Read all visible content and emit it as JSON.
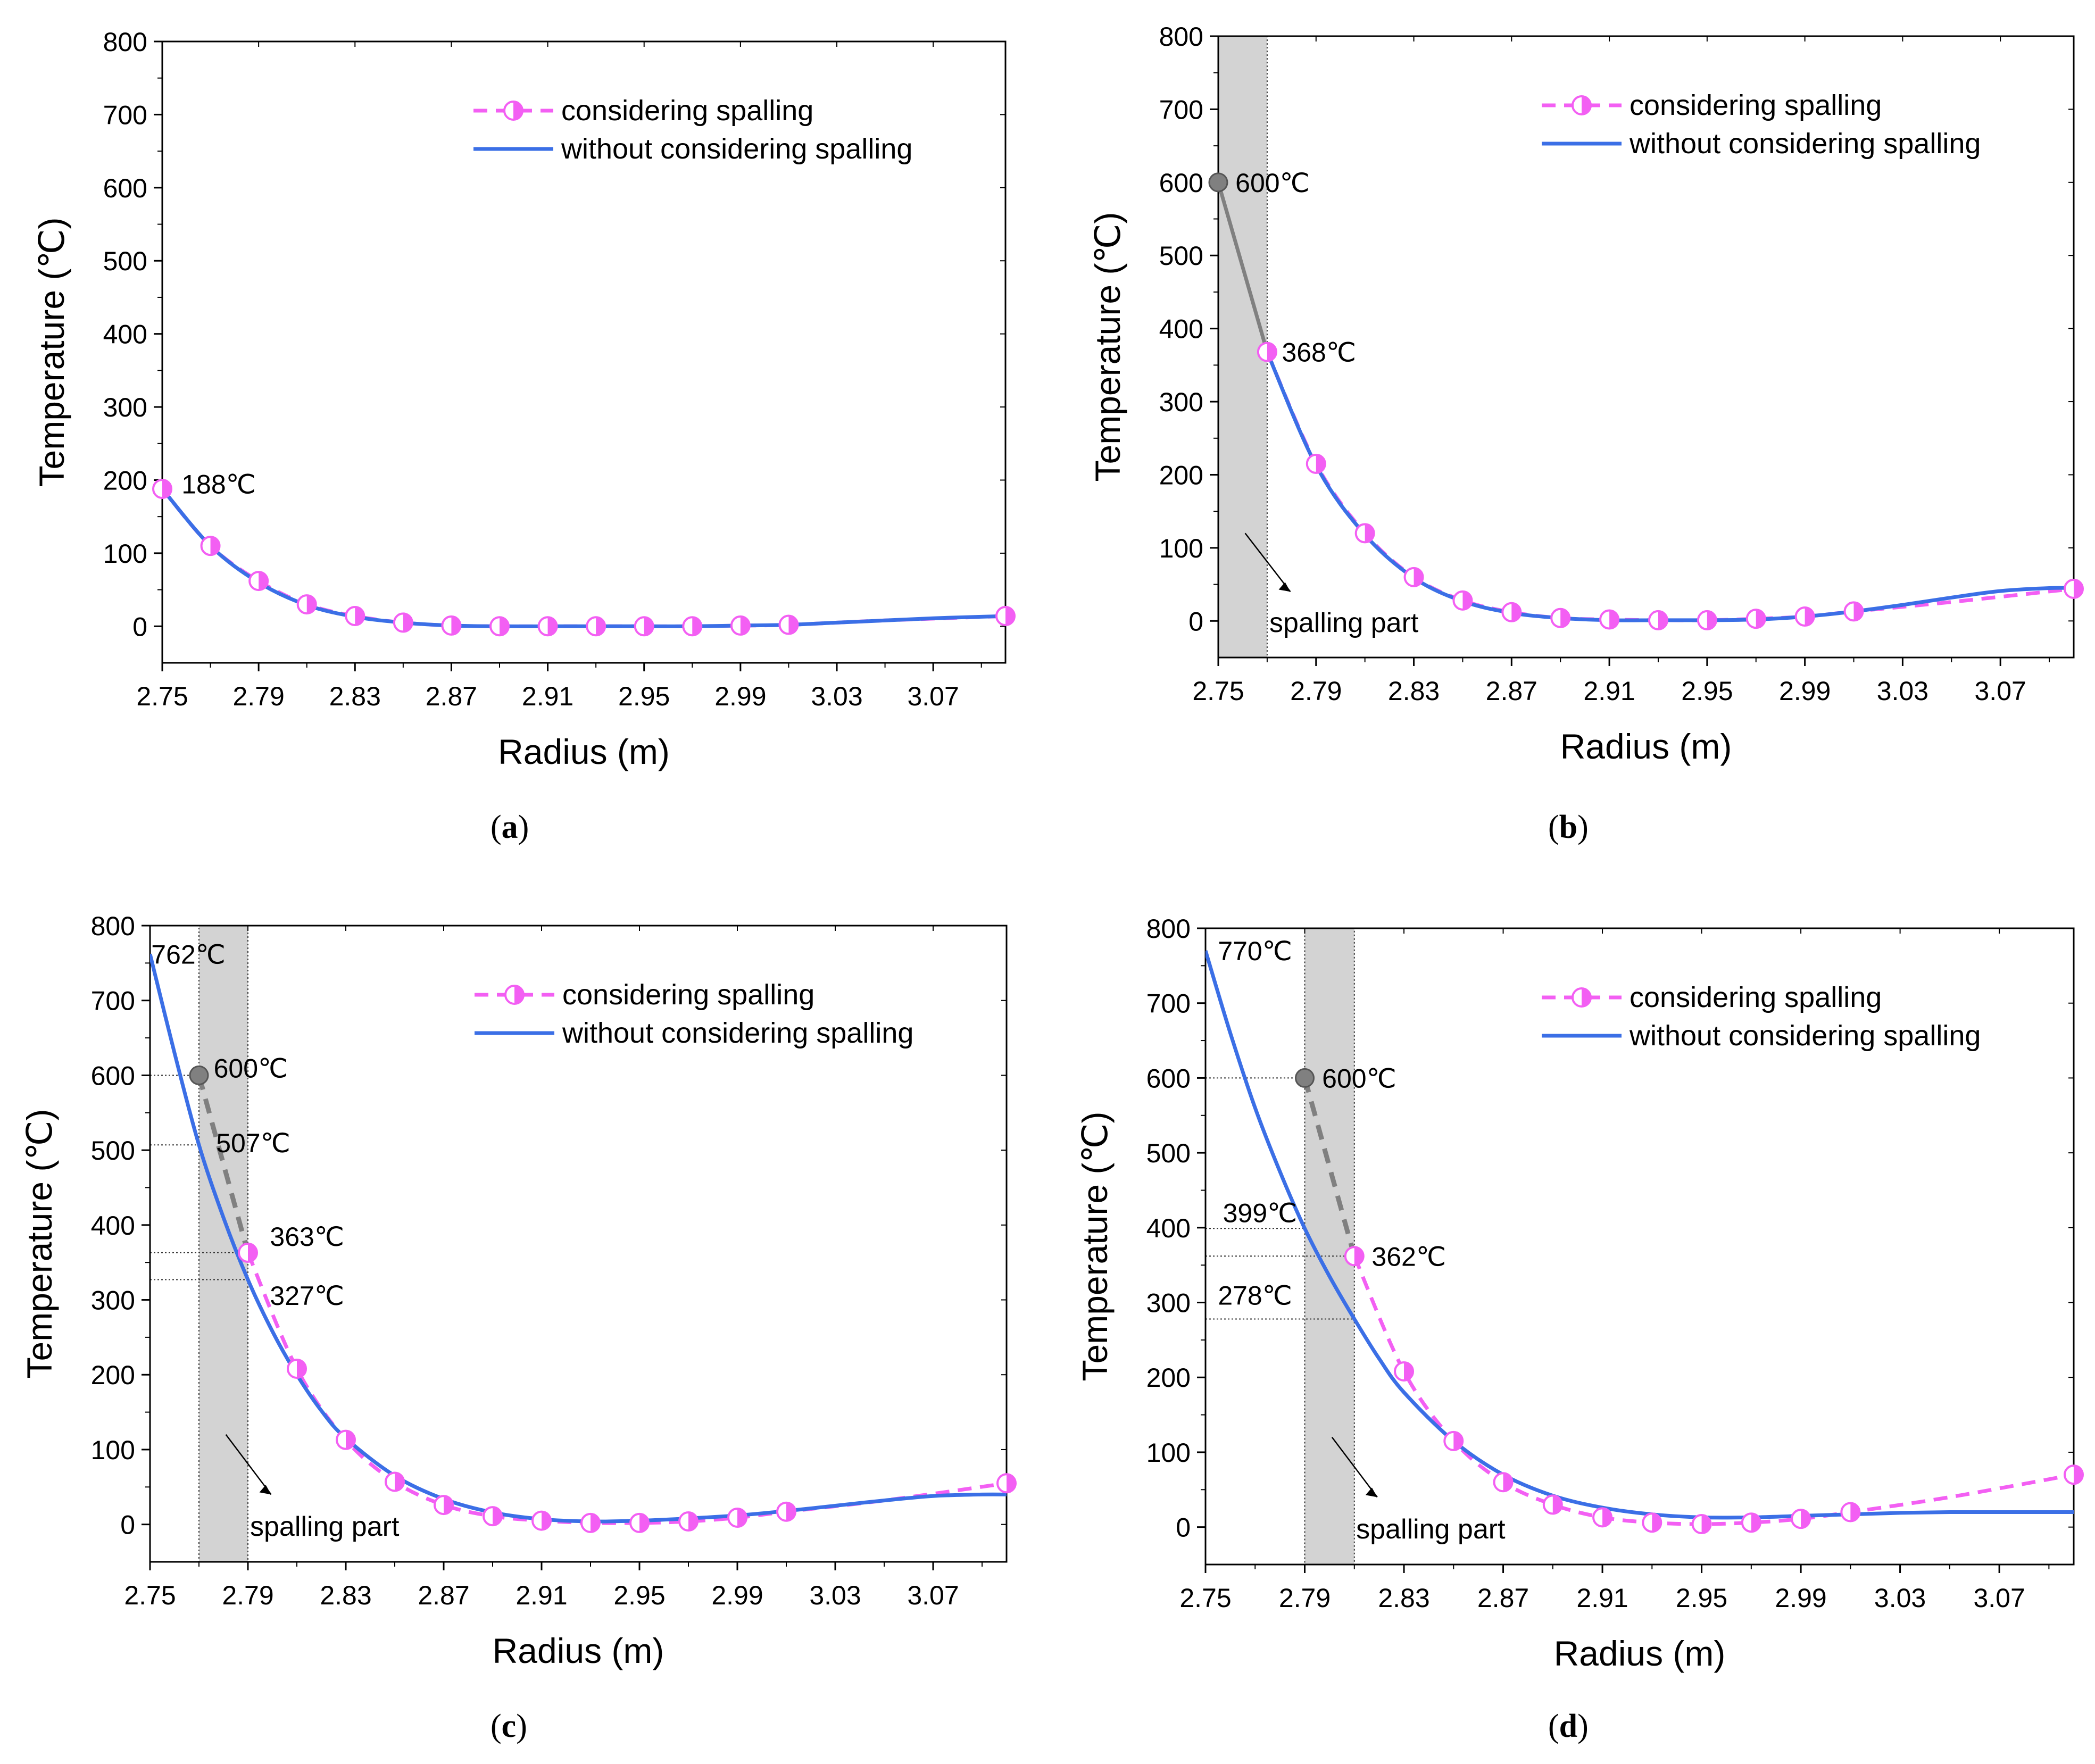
{
  "figure": {
    "captions": [
      "a",
      "b",
      "c",
      "d"
    ]
  },
  "colors": {
    "considering": "#f35ff3",
    "without": "#3b6fe6",
    "spall_region": "#d3d3d3",
    "gray_point": "#808080"
  },
  "chart_data": [
    {
      "panel": "a",
      "type": "line",
      "xlabel": "Radius (m)",
      "ylabel": "Temperature (℃)",
      "xlim": [
        2.75,
        3.1
      ],
      "ylim": [
        -50,
        800
      ],
      "xticks": [
        2.75,
        2.79,
        2.83,
        2.87,
        2.91,
        2.95,
        2.99,
        3.03,
        3.07
      ],
      "xtick_labels": [
        "2.75",
        "2.79",
        "2.83",
        "2.87",
        "2.91",
        "2.95",
        "2.99",
        "3.03",
        "3.07"
      ],
      "yticks": [
        0,
        100,
        200,
        300,
        400,
        500,
        600,
        700,
        800
      ],
      "ytick_labels": [
        "0",
        "100",
        "200",
        "300",
        "400",
        "500",
        "600",
        "700",
        "800"
      ],
      "legend": [
        "considering spalling",
        "without considering spalling"
      ],
      "legend_position": "top-right",
      "spalling_region": null,
      "spalling_label": null,
      "series": [
        {
          "name": "considering spalling",
          "style": "dashed-marker",
          "x": [
            2.75,
            2.77,
            2.79,
            2.81,
            2.83,
            2.85,
            2.87,
            2.89,
            2.91,
            2.93,
            2.95,
            2.97,
            2.99,
            3.01,
            3.05,
            3.1
          ],
          "y": [
            188,
            110,
            62,
            30,
            14,
            5,
            1,
            0,
            0,
            0,
            0,
            0,
            1,
            2,
            8,
            14
          ]
        },
        {
          "name": "without considering spalling",
          "style": "solid",
          "x": [
            2.75,
            2.77,
            2.79,
            2.81,
            2.83,
            2.85,
            2.87,
            2.89,
            2.91,
            2.93,
            2.95,
            2.97,
            2.99,
            3.01,
            3.03,
            3.05,
            3.07,
            3.09,
            3.1
          ],
          "y": [
            188,
            110,
            60,
            29,
            13,
            5,
            1,
            0,
            0,
            0,
            0,
            0,
            1,
            2,
            5,
            8,
            11,
            13,
            14
          ]
        }
      ],
      "markers_x": [
        2.75,
        2.77,
        2.79,
        2.81,
        2.83,
        2.85,
        2.87,
        2.89,
        2.91,
        2.93,
        2.95,
        2.97,
        2.99,
        3.01,
        3.1
      ],
      "gray_points": [],
      "annotations": [
        {
          "text": "188℃",
          "x": 2.758,
          "y": 195
        }
      ],
      "hlines": []
    },
    {
      "panel": "b",
      "type": "line",
      "xlabel": "Radius (m)",
      "ylabel": "Temperature (℃)",
      "xlim": [
        2.75,
        3.1
      ],
      "ylim": [
        -50,
        800
      ],
      "xticks": [
        2.75,
        2.79,
        2.83,
        2.87,
        2.91,
        2.95,
        2.99,
        3.03,
        3.07
      ],
      "xtick_labels": [
        "2.75",
        "2.79",
        "2.83",
        "2.87",
        "2.91",
        "2.95",
        "2.99",
        "3.03",
        "3.07"
      ],
      "yticks": [
        0,
        100,
        200,
        300,
        400,
        500,
        600,
        700,
        800
      ],
      "ytick_labels": [
        "0",
        "100",
        "200",
        "300",
        "400",
        "500",
        "600",
        "700",
        "800"
      ],
      "legend": [
        "considering spalling",
        "without considering spalling"
      ],
      "legend_position": "top-right",
      "spalling_region": [
        2.75,
        2.77
      ],
      "spalling_label": "spalling part",
      "series": [
        {
          "name": "gray-segment",
          "style": "solid-gray",
          "x": [
            2.75,
            2.77
          ],
          "y": [
            600,
            368
          ]
        },
        {
          "name": "considering spalling",
          "style": "dashed-marker",
          "x": [
            2.77,
            2.79,
            2.81,
            2.83,
            2.85,
            2.87,
            2.89,
            2.91,
            2.93,
            2.95,
            2.97,
            2.99,
            3.01,
            3.05,
            3.1
          ],
          "y": [
            368,
            215,
            120,
            60,
            28,
            12,
            4,
            2,
            1,
            1,
            3,
            6,
            13,
            26,
            44
          ]
        },
        {
          "name": "without considering spalling",
          "style": "solid",
          "x": [
            2.77,
            2.79,
            2.81,
            2.83,
            2.85,
            2.87,
            2.89,
            2.91,
            2.93,
            2.95,
            2.97,
            2.99,
            3.01,
            3.03,
            3.05,
            3.07,
            3.09,
            3.1
          ],
          "y": [
            368,
            213,
            118,
            59,
            27,
            11,
            4,
            1,
            1,
            1,
            2,
            6,
            13,
            22,
            32,
            41,
            45,
            45
          ]
        }
      ],
      "markers_x": [
        2.77,
        2.79,
        2.81,
        2.83,
        2.85,
        2.87,
        2.89,
        2.91,
        2.93,
        2.95,
        2.97,
        2.99,
        3.01,
        3.1
      ],
      "gray_points": [
        {
          "x": 2.75,
          "y": 600
        }
      ],
      "annotations": [
        {
          "text": "600℃",
          "x": 2.757,
          "y": 600
        },
        {
          "text": "368℃",
          "x": 2.776,
          "y": 368
        }
      ],
      "hlines": []
    },
    {
      "panel": "c",
      "type": "line",
      "xlabel": "Radius (m)",
      "ylabel": "Temperature (℃)",
      "xlim": [
        2.75,
        3.1
      ],
      "ylim": [
        -50,
        800
      ],
      "xticks": [
        2.75,
        2.79,
        2.83,
        2.87,
        2.91,
        2.95,
        2.99,
        3.03,
        3.07
      ],
      "xtick_labels": [
        "2.75",
        "2.79",
        "2.83",
        "2.87",
        "2.91",
        "2.95",
        "2.99",
        "3.03",
        "3.07"
      ],
      "yticks": [
        0,
        100,
        200,
        300,
        400,
        500,
        600,
        700,
        800
      ],
      "ytick_labels": [
        "0",
        "100",
        "200",
        "300",
        "400",
        "500",
        "600",
        "700",
        "800"
      ],
      "legend": [
        "considering spalling",
        "without considering spalling"
      ],
      "legend_position": "top-right",
      "spalling_region": [
        2.77,
        2.79
      ],
      "spalling_label": "spalling part",
      "series": [
        {
          "name": "gray-segment",
          "style": "dashed-gray",
          "x": [
            2.77,
            2.79
          ],
          "y": [
            600,
            363
          ]
        },
        {
          "name": "considering spalling",
          "style": "dashed-marker",
          "x": [
            2.79,
            2.81,
            2.83,
            2.85,
            2.87,
            2.89,
            2.91,
            2.93,
            2.95,
            2.97,
            2.99,
            3.01,
            3.05,
            3.1
          ],
          "y": [
            363,
            208,
            113,
            57,
            26,
            11,
            5,
            2,
            2,
            4,
            9,
            17,
            32,
            55
          ]
        },
        {
          "name": "without considering spalling",
          "style": "solid",
          "x": [
            2.75,
            2.76,
            2.77,
            2.78,
            2.79,
            2.8,
            2.81,
            2.82,
            2.83,
            2.85,
            2.87,
            2.89,
            2.91,
            2.93,
            2.95,
            2.97,
            2.99,
            3.01,
            3.03,
            3.05,
            3.07,
            3.09,
            3.1
          ],
          "y": [
            762,
            630,
            507,
            410,
            327,
            258,
            200,
            152,
            115,
            65,
            34,
            16,
            7,
            4,
            5,
            8,
            12,
            18,
            25,
            32,
            38,
            40,
            40
          ]
        }
      ],
      "markers_x": [
        2.79,
        2.81,
        2.83,
        2.85,
        2.87,
        2.89,
        2.91,
        2.93,
        2.95,
        2.97,
        2.99,
        3.01,
        3.1
      ],
      "gray_points": [
        {
          "x": 2.77,
          "y": 600
        }
      ],
      "annotations": [
        {
          "text": "762℃",
          "x": 2.7505,
          "y": 762
        },
        {
          "text": "600℃",
          "x": 2.776,
          "y": 610
        },
        {
          "text": "507℃",
          "x": 2.777,
          "y": 510
        },
        {
          "text": "363℃",
          "x": 2.799,
          "y": 385
        },
        {
          "text": "327℃",
          "x": 2.799,
          "y": 306
        }
      ],
      "hlines": [
        {
          "y": 600,
          "x_end": 2.77
        },
        {
          "y": 507,
          "x_end": 2.77
        },
        {
          "y": 363,
          "x_end": 2.79
        },
        {
          "y": 327,
          "x_end": 2.79
        }
      ]
    },
    {
      "panel": "d",
      "type": "line",
      "xlabel": "Radius (m)",
      "ylabel": "Temperature (℃)",
      "xlim": [
        2.75,
        3.1
      ],
      "ylim": [
        -50,
        800
      ],
      "xticks": [
        2.75,
        2.79,
        2.83,
        2.87,
        2.91,
        2.95,
        2.99,
        3.03,
        3.07
      ],
      "xtick_labels": [
        "2.75",
        "2.79",
        "2.83",
        "2.87",
        "2.91",
        "2.95",
        "2.99",
        "3.03",
        "3.07"
      ],
      "yticks": [
        0,
        100,
        200,
        300,
        400,
        500,
        600,
        700,
        800
      ],
      "ytick_labels": [
        "0",
        "100",
        "200",
        "300",
        "400",
        "500",
        "600",
        "700",
        "800"
      ],
      "legend": [
        "considering spalling",
        "without considering spalling"
      ],
      "legend_position": "top-right",
      "spalling_region": [
        2.79,
        2.81
      ],
      "spalling_label": "spalling part",
      "series": [
        {
          "name": "gray-segment",
          "style": "dashed-gray",
          "x": [
            2.79,
            2.81
          ],
          "y": [
            600,
            362
          ]
        },
        {
          "name": "considering spalling",
          "style": "dashed-marker",
          "x": [
            2.81,
            2.83,
            2.85,
            2.87,
            2.89,
            2.91,
            2.93,
            2.95,
            2.97,
            2.99,
            3.01,
            3.05,
            3.1
          ],
          "y": [
            362,
            208,
            115,
            60,
            30,
            13,
            6,
            4,
            6,
            11,
            20,
            40,
            70
          ]
        },
        {
          "name": "without considering spalling",
          "style": "solid",
          "x": [
            2.75,
            2.76,
            2.77,
            2.78,
            2.79,
            2.8,
            2.81,
            2.82,
            2.83,
            2.85,
            2.87,
            2.89,
            2.91,
            2.93,
            2.95,
            2.97,
            2.99,
            3.01,
            3.03,
            3.05,
            3.07,
            3.09,
            3.1
          ],
          "y": [
            770,
            660,
            560,
            475,
            399,
            335,
            278,
            225,
            180,
            115,
            70,
            42,
            26,
            17,
            13,
            13,
            15,
            17,
            19,
            20,
            20,
            20,
            20
          ]
        }
      ],
      "markers_x": [
        2.81,
        2.83,
        2.85,
        2.87,
        2.89,
        2.91,
        2.93,
        2.95,
        2.97,
        2.99,
        3.01,
        3.1
      ],
      "gray_points": [
        {
          "x": 2.79,
          "y": 600
        }
      ],
      "annotations": [
        {
          "text": "770℃",
          "x": 2.755,
          "y": 770
        },
        {
          "text": "600℃",
          "x": 2.797,
          "y": 600
        },
        {
          "text": "399℃",
          "x": 2.757,
          "y": 420
        },
        {
          "text": "362℃",
          "x": 2.817,
          "y": 362
        },
        {
          "text": "278℃",
          "x": 2.755,
          "y": 310
        }
      ],
      "hlines": [
        {
          "y": 600,
          "x_end": 2.79
        },
        {
          "y": 399,
          "x_end": 2.79
        },
        {
          "y": 362,
          "x_end": 2.81
        },
        {
          "y": 278,
          "x_end": 2.81
        }
      ]
    }
  ]
}
